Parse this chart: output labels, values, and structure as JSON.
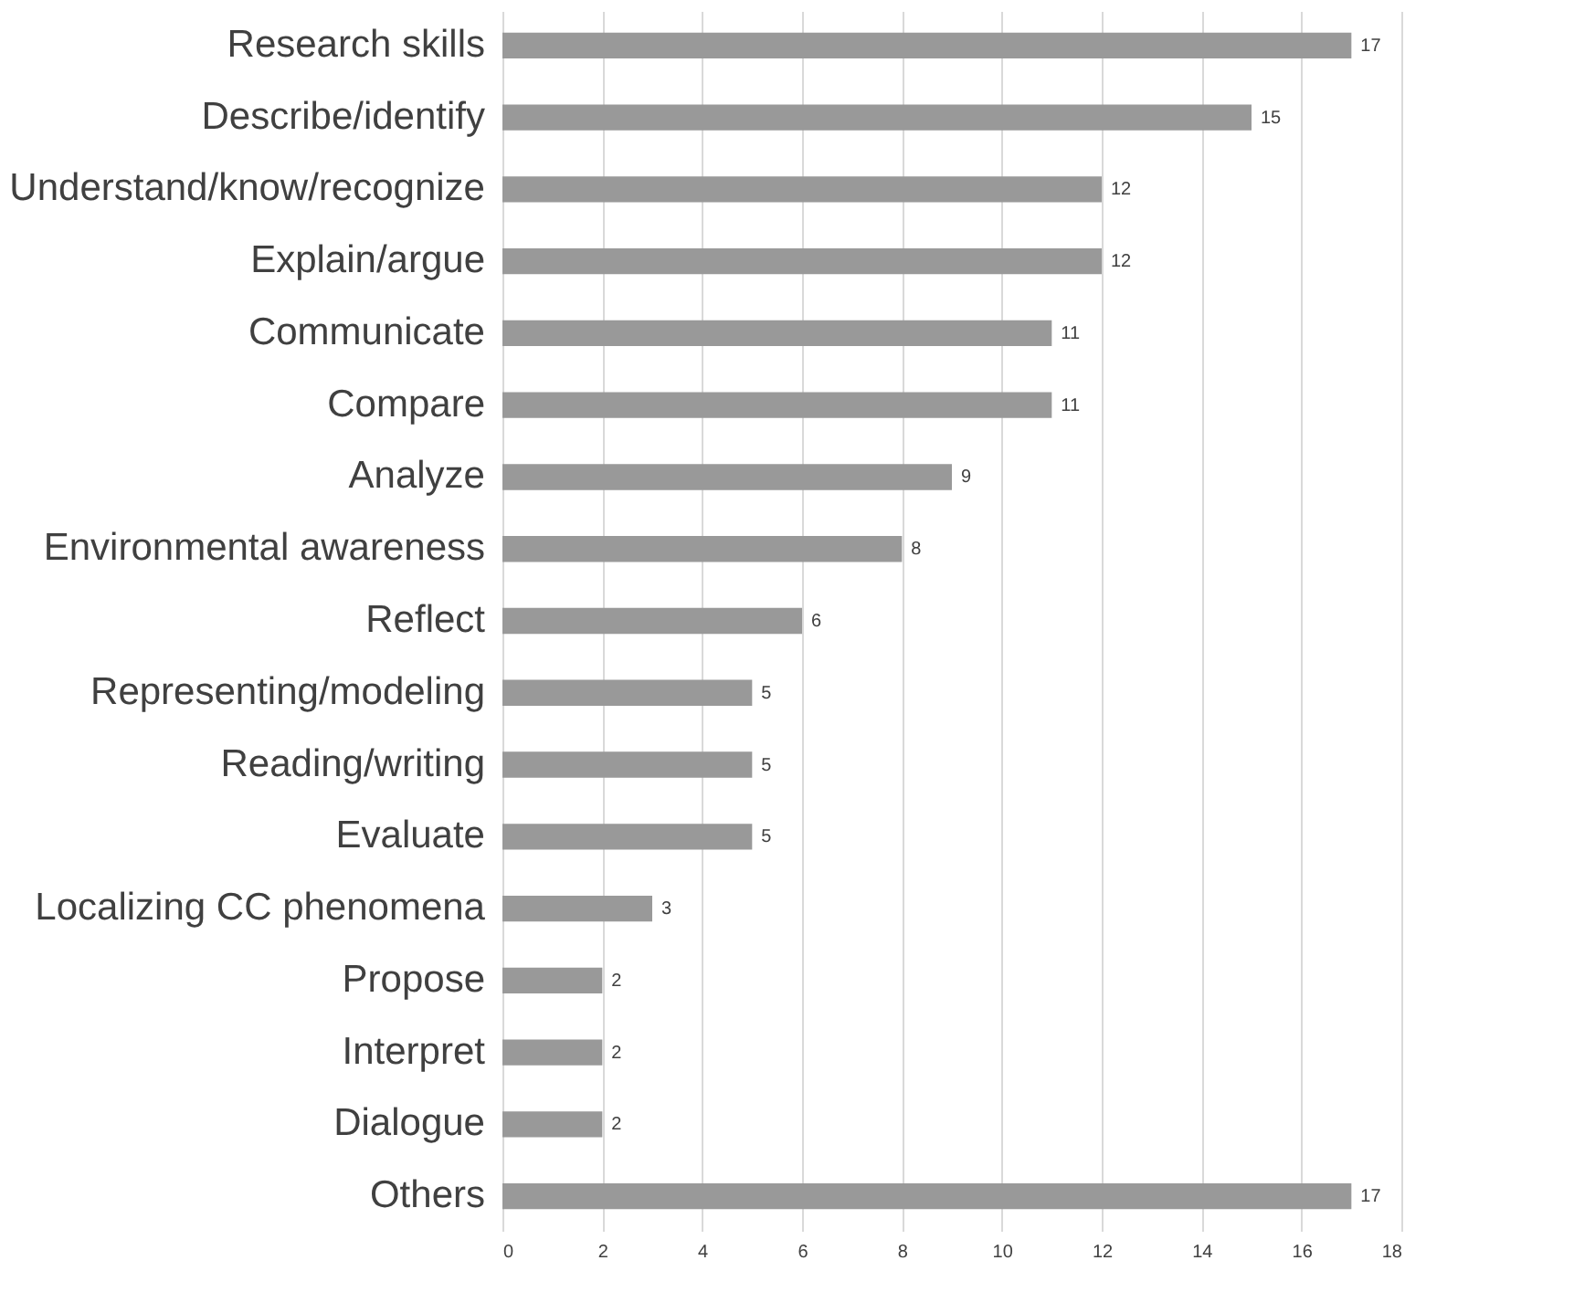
{
  "chart_data": {
    "type": "bar",
    "orientation": "horizontal",
    "categories": [
      "Research skills",
      "Describe/identify",
      "Understand/know/recognize",
      "Explain/argue",
      "Communicate",
      "Compare",
      "Analyze",
      "Environmental awareness",
      "Reflect",
      "Representing/modeling",
      "Reading/writing",
      "Evaluate",
      "Localizing CC phenomena",
      "Propose",
      "Interpret",
      "Dialogue",
      "Others"
    ],
    "values": [
      17,
      15,
      12,
      12,
      11,
      11,
      9,
      8,
      6,
      5,
      5,
      5,
      3,
      2,
      2,
      2,
      17
    ],
    "color": "#999999",
    "xlim": [
      0,
      18
    ],
    "xticks": [
      0,
      2,
      4,
      6,
      8,
      10,
      12,
      14,
      16,
      18
    ],
    "grid": "x",
    "data_labels": true
  }
}
